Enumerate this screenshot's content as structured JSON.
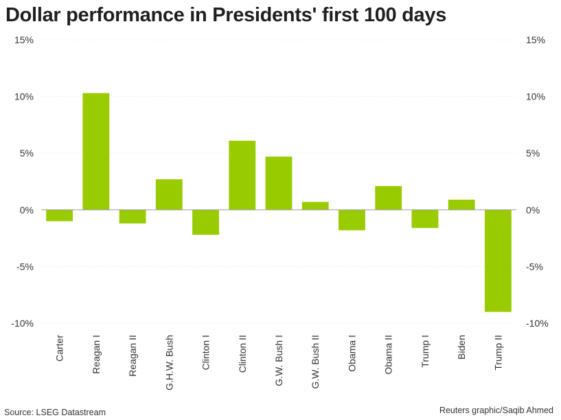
{
  "chart_data": {
    "type": "bar",
    "title": "Dollar performance in Presidents' first 100 days",
    "categories": [
      "Carter",
      "Reagan I",
      "Reagan II",
      "G.H.W. Bush",
      "Clinton I",
      "Clinton II",
      "G.W. Bush I",
      "G.W. Bush II",
      "Obama I",
      "Obama II",
      "Trump I",
      "Biden",
      "Trump II"
    ],
    "values": [
      -1.0,
      10.3,
      -1.2,
      2.7,
      -2.2,
      6.1,
      4.7,
      0.7,
      -1.8,
      2.1,
      -1.6,
      0.9,
      -9.0
    ],
    "ylim": [
      -10,
      15
    ],
    "yticks": [
      -10,
      -5,
      0,
      5,
      10,
      15
    ],
    "ytick_labels": [
      "-10%",
      "-5%",
      "0%",
      "5%",
      "10%",
      "15%"
    ],
    "xlabel": "",
    "ylabel": "",
    "grid": true,
    "bar_color": "#99cc00"
  },
  "footer": {
    "source": "Source: LSEG Datastream",
    "credit": "Reuters graphic/Saqib Ahmed"
  }
}
